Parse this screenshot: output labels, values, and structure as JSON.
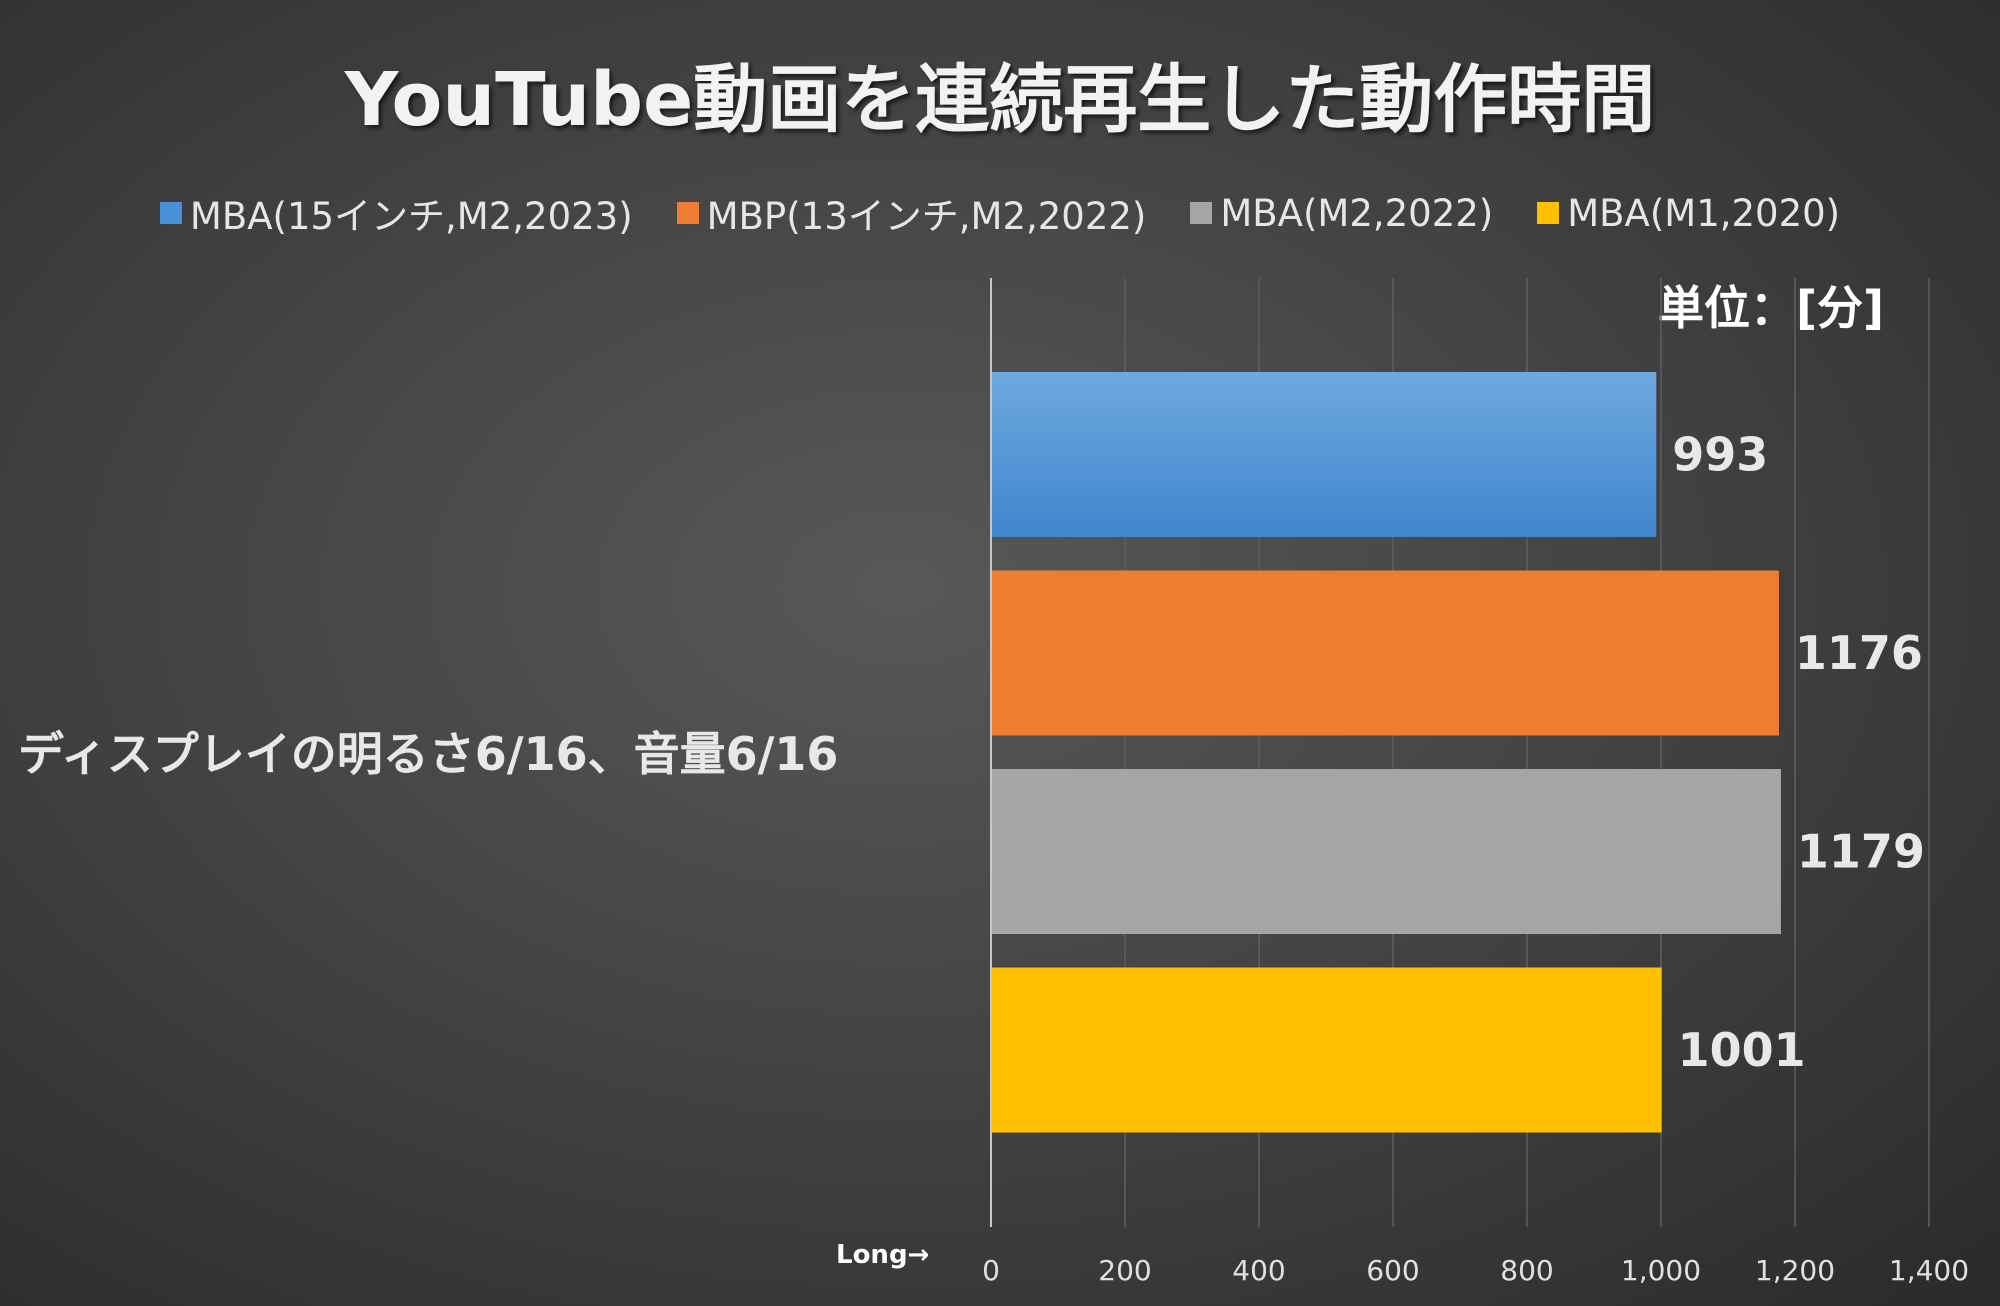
{
  "chart_data": {
    "type": "bar",
    "orientation": "horizontal",
    "title": "YouTube動画を連続再生した動作時間",
    "unit_label": "単位：[分]",
    "categories": [
      "ディスプレイの明るさ6/16、音量6/16"
    ],
    "series": [
      {
        "name": "MBA(15インチ,M2,2023)",
        "values": [
          993
        ],
        "color": "#4a90d9"
      },
      {
        "name": "MBP(13インチ,M2,2022)",
        "values": [
          1176
        ],
        "color": "#ed7d31"
      },
      {
        "name": "MBA(M2,2022)",
        "values": [
          1179
        ],
        "color": "#a5a5a5"
      },
      {
        "name": "MBA(M1,2020)",
        "values": [
          1001
        ],
        "color": "#ffc000"
      }
    ],
    "xlim": [
      0,
      1400
    ],
    "xticks": [
      "0",
      "200",
      "400",
      "600",
      "800",
      "1,000",
      "1,200",
      "1,400"
    ],
    "axis_note": "Long→",
    "grid": true,
    "legend_position": "top"
  }
}
